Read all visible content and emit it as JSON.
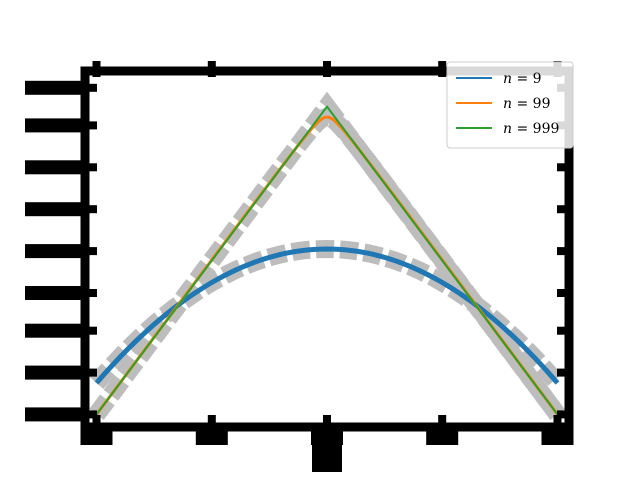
{
  "chart_data": {
    "type": "line",
    "xlim": [
      -1.05,
      1.05
    ],
    "ylim": [
      0.0,
      0.85
    ],
    "grid": false,
    "legend_position": "top-right",
    "x_ticks": [
      -1,
      -0.5,
      0,
      0.5,
      1
    ],
    "y_ticks": [
      0.03,
      0.13,
      0.23,
      0.32,
      0.42,
      0.52,
      0.62,
      0.72,
      0.81
    ],
    "series": [
      {
        "name": "n = 9",
        "label_main": "n",
        "label_value": "9",
        "color": "#1f77b4",
        "width": 5,
        "kind": "smooth",
        "x": [
          -1,
          1
        ],
        "y_peak": 0.425,
        "y_end": 0.105
      },
      {
        "name": "n = 99",
        "label_main": "n",
        "label_value": "99",
        "color": "#ff7f0e",
        "width": 3,
        "kind": "rounded_peak",
        "x": [
          -1,
          1
        ],
        "y_peak": 0.74,
        "y_end": 0.03
      },
      {
        "name": "n = 999",
        "label_main": "n",
        "label_value": "999",
        "color": "#2ca02c",
        "width": 2,
        "kind": "sharp_peak",
        "x": [
          -1,
          0,
          1
        ],
        "y": [
          0.03,
          0.765,
          0.03
        ]
      }
    ]
  }
}
